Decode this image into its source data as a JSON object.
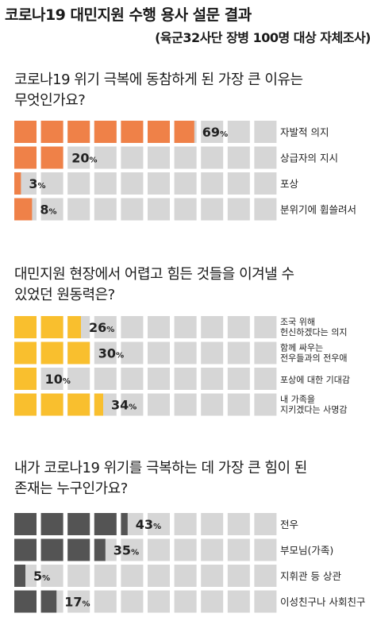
{
  "header": {
    "title": "코로나19 대민지원 수행 용사 설문 결과",
    "subtitle": "(육군32사단 장병 100명 대상 자체조사)"
  },
  "colors": {
    "cell_empty": "#d6d6d6",
    "section1": "#ef8148",
    "section2": "#f9bf2e",
    "section3": "#545454"
  },
  "chart_data": [
    {
      "type": "bar",
      "question_lines": [
        "코로나19 위기 극복에 동참하게 된 가장 큰 이유는",
        "무엇인가요?"
      ],
      "unit": "%",
      "categories": [
        [
          "자발적 의지"
        ],
        [
          "상급자의 지시"
        ],
        [
          "포상"
        ],
        [
          "분위기에 휩쓸려서"
        ]
      ],
      "values": [
        69,
        20,
        3,
        8
      ],
      "max_value": 100
    },
    {
      "type": "bar",
      "question_lines": [
        "대민지원 현장에서 어렵고 힘든 것들을 이겨낼 수",
        "있었던 원동력은?"
      ],
      "unit": "%",
      "categories": [
        [
          "조국 위해",
          "헌신하겠다는 의지"
        ],
        [
          "함께 싸우는",
          "전우들과의 전우애"
        ],
        [
          "포상에 대한 기대감"
        ],
        [
          "내 가족을",
          "지키겠다는 사명감"
        ]
      ],
      "values": [
        26,
        30,
        10,
        34
      ],
      "max_value": 100
    },
    {
      "type": "bar",
      "question_lines": [
        "내가 코로나19 위기를 극복하는 데 가장 큰 힘이 된",
        "존재는 누구인가요?"
      ],
      "unit": "%",
      "categories": [
        [
          "전우"
        ],
        [
          "부모님(가족)"
        ],
        [
          "지휘관 등 상관"
        ],
        [
          "이성친구나 사회친구"
        ]
      ],
      "values": [
        43,
        35,
        5,
        17
      ],
      "max_value": 100
    }
  ]
}
